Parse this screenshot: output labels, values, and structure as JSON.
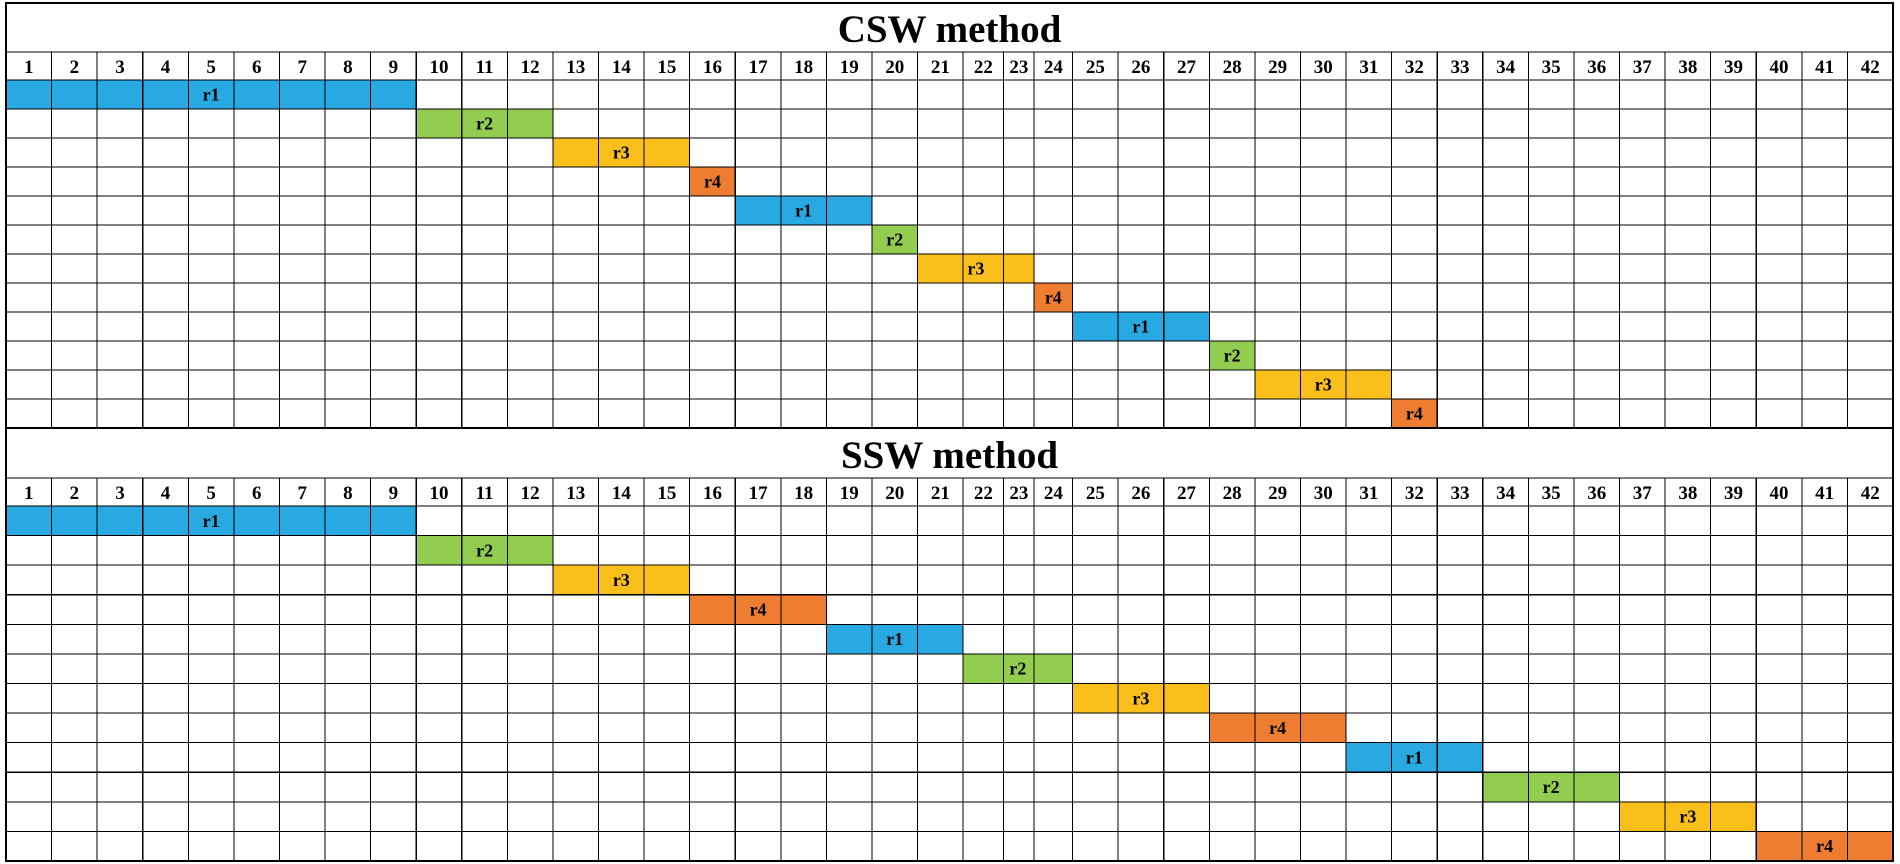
{
  "colors": {
    "r1": "#29a9e1",
    "r2": "#92cd50",
    "r3": "#fbbf1b",
    "r4": "#ef7d31"
  },
  "columns": [
    "1",
    "2",
    "3",
    "4",
    "5",
    "6",
    "7",
    "8",
    "9",
    "10",
    "11",
    "12",
    "13",
    "14",
    "15",
    "16",
    "17",
    "18",
    "19",
    "20",
    "21",
    "22",
    "23",
    "24",
    "25",
    "26",
    "27",
    "28",
    "29",
    "30",
    "31",
    "32",
    "33",
    "34",
    "35",
    "36",
    "37",
    "38",
    "39",
    "40",
    "41",
    "42"
  ],
  "panels": [
    {
      "title": "CSW method",
      "tasks": [
        {
          "label": "r1",
          "start": 1,
          "end": 9
        },
        {
          "label": "r2",
          "start": 10,
          "end": 12
        },
        {
          "label": "r3",
          "start": 13,
          "end": 15
        },
        {
          "label": "r4",
          "start": 16,
          "end": 16
        },
        {
          "label": "r1",
          "start": 17,
          "end": 19
        },
        {
          "label": "r2",
          "start": 20,
          "end": 20
        },
        {
          "label": "r3",
          "start": 21,
          "end": 23
        },
        {
          "label": "r4",
          "start": 24,
          "end": 24
        },
        {
          "label": "r1",
          "start": 25,
          "end": 27
        },
        {
          "label": "r2",
          "start": 28,
          "end": 28
        },
        {
          "label": "r3",
          "start": 29,
          "end": 31
        },
        {
          "label": "r4",
          "start": 32,
          "end": 32
        }
      ]
    },
    {
      "title": "SSW method",
      "tasks": [
        {
          "label": "r1",
          "start": 1,
          "end": 9
        },
        {
          "label": "r2",
          "start": 10,
          "end": 12
        },
        {
          "label": "r3",
          "start": 13,
          "end": 15
        },
        {
          "label": "r4",
          "start": 16,
          "end": 18
        },
        {
          "label": "r1",
          "start": 19,
          "end": 21
        },
        {
          "label": "r2",
          "start": 22,
          "end": 24
        },
        {
          "label": "r3",
          "start": 25,
          "end": 27
        },
        {
          "label": "r4",
          "start": 28,
          "end": 30
        },
        {
          "label": "r1",
          "start": 31,
          "end": 33
        },
        {
          "label": "r2",
          "start": 34,
          "end": 36
        },
        {
          "label": "r3",
          "start": 37,
          "end": 39
        },
        {
          "label": "r4",
          "start": 40,
          "end": 42
        }
      ]
    }
  ]
}
